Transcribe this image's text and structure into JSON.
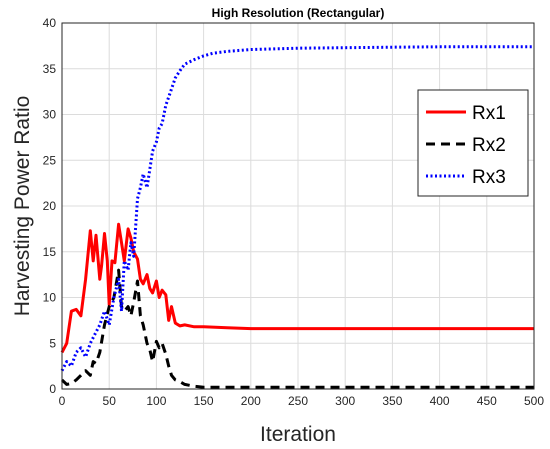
{
  "chart_data": {
    "type": "line",
    "title": "High Resolution (Rectangular)",
    "xlabel": "Iteration",
    "ylabel": "Harvesting Power Ratio",
    "xlim": [
      0,
      500
    ],
    "ylim": [
      0,
      40
    ],
    "xticks": [
      "0",
      "50",
      "100",
      "150",
      "200",
      "250",
      "300",
      "350",
      "400",
      "450",
      "500"
    ],
    "yticks": [
      "0",
      "5",
      "10",
      "15",
      "20",
      "25",
      "30",
      "35",
      "40"
    ],
    "grid": true,
    "legend_position": "right",
    "series": [
      {
        "name": "Rx1",
        "color": "#ff0000",
        "style": "solid",
        "x": [
          0,
          5,
          10,
          15,
          20,
          25,
          30,
          33,
          36,
          40,
          42,
          45,
          48,
          50,
          53,
          56,
          60,
          63,
          66,
          70,
          73,
          76,
          80,
          83,
          86,
          90,
          93,
          96,
          100,
          103,
          106,
          110,
          113,
          116,
          120,
          125,
          130,
          140,
          150,
          175,
          200,
          250,
          300,
          350,
          400,
          450,
          500
        ],
        "y": [
          4,
          5,
          8.5,
          8.7,
          8,
          12,
          17.3,
          14,
          16.8,
          12,
          13.5,
          17,
          14,
          9.2,
          14,
          13.8,
          18,
          16,
          14,
          17.5,
          16.5,
          15,
          14.2,
          12,
          11.5,
          12.5,
          11,
          10.5,
          11.8,
          10,
          10.8,
          10.3,
          7.5,
          9,
          7.2,
          6.9,
          7,
          6.8,
          6.8,
          6.7,
          6.6,
          6.6,
          6.6,
          6.6,
          6.6,
          6.6,
          6.6
        ]
      },
      {
        "name": "Rx2",
        "color": "#000000",
        "style": "dashed",
        "x": [
          0,
          5,
          10,
          15,
          20,
          25,
          30,
          33,
          36,
          40,
          45,
          50,
          55,
          60,
          63,
          66,
          70,
          73,
          76,
          80,
          83,
          86,
          90,
          93,
          96,
          100,
          103,
          106,
          110,
          113,
          116,
          120,
          125,
          130,
          135,
          140,
          150,
          175,
          200,
          250,
          300,
          350,
          400,
          450,
          500
        ],
        "y": [
          1,
          0.5,
          0.6,
          1,
          1.5,
          2,
          1.5,
          3,
          2.8,
          4,
          7,
          9,
          10,
          13,
          9,
          8.5,
          9,
          8,
          9.5,
          11.8,
          8,
          7,
          5,
          4.3,
          3,
          5.2,
          4.5,
          5,
          3.8,
          2.5,
          1.5,
          1,
          0.8,
          0.5,
          0.4,
          0.3,
          0.2,
          0.2,
          0.2,
          0.2,
          0.2,
          0.2,
          0.2,
          0.2,
          0.2
        ]
      },
      {
        "name": "Rx3",
        "color": "#0000ff",
        "style": "dotted",
        "x": [
          0,
          5,
          10,
          15,
          20,
          25,
          30,
          35,
          40,
          45,
          50,
          55,
          60,
          63,
          66,
          70,
          73,
          76,
          80,
          83,
          86,
          90,
          93,
          96,
          100,
          103,
          106,
          110,
          115,
          120,
          125,
          130,
          140,
          150,
          160,
          175,
          200,
          250,
          300,
          350,
          400,
          450,
          500
        ],
        "y": [
          2,
          3,
          2.5,
          4,
          4.5,
          3.5,
          5,
          6,
          7,
          8.5,
          7,
          10,
          12,
          8.5,
          14,
          13,
          16,
          14.5,
          20.8,
          22,
          23.5,
          22,
          24,
          26,
          27,
          28.5,
          29,
          31,
          32.5,
          34,
          34.8,
          35.5,
          36,
          36.4,
          36.7,
          36.9,
          37.1,
          37.25,
          37.3,
          37.35,
          37.4,
          37.4,
          37.4
        ]
      }
    ]
  }
}
